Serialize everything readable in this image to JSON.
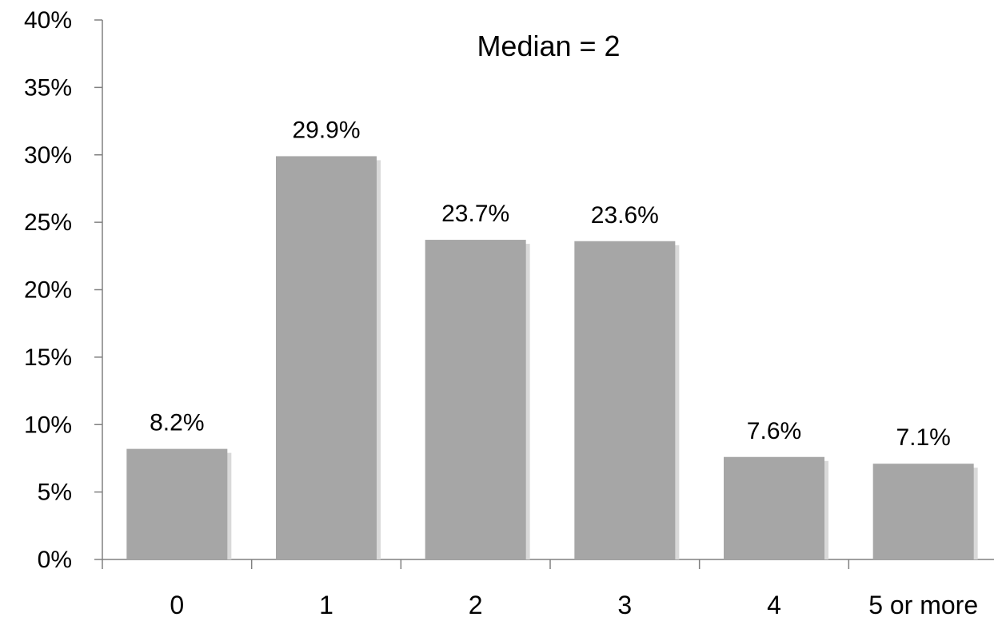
{
  "chart_data": {
    "type": "bar",
    "categories": [
      "0",
      "1",
      "2",
      "3",
      "4",
      "5 or more"
    ],
    "values": [
      8.2,
      29.9,
      23.7,
      23.6,
      7.6,
      7.1
    ],
    "data_labels": [
      "8.2%",
      "29.9%",
      "23.7%",
      "23.6%",
      "7.6%",
      "7.1%"
    ],
    "title": "",
    "annotation": "Median = 2",
    "xlabel": "",
    "ylabel": "",
    "ylim": [
      0,
      40
    ],
    "y_ticks": [
      0,
      5,
      10,
      15,
      20,
      25,
      30,
      35,
      40
    ],
    "y_tick_labels": [
      "0%",
      "5%",
      "10%",
      "15%",
      "20%",
      "25%",
      "30%",
      "35%",
      "40%"
    ],
    "grid": false,
    "legend": "none",
    "colors": {
      "bar": "#a6a6a6",
      "bar_shadow": "#d9d9d9",
      "axis": "#808080",
      "text": "#000000"
    }
  }
}
